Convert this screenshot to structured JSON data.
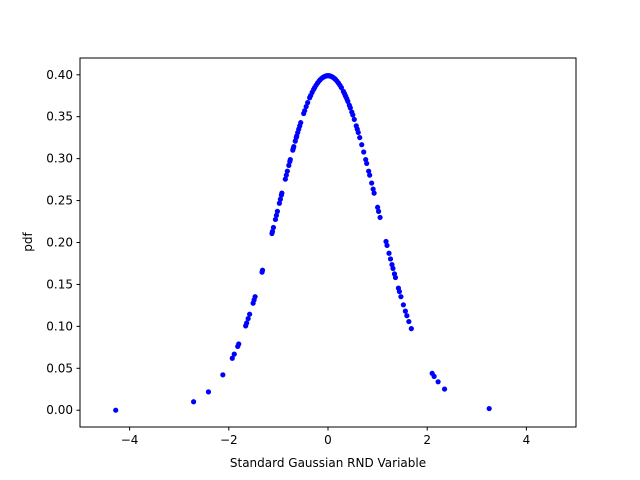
{
  "chart_data": {
    "type": "scatter",
    "title": "",
    "xlabel": "Standard Gaussian RND Variable",
    "ylabel": "pdf",
    "xlim": [
      -5,
      5
    ],
    "ylim": [
      -0.02,
      0.42
    ],
    "xticks": [
      -4,
      -2,
      0,
      2,
      4
    ],
    "xtick_labels": [
      "−4",
      "−2",
      "0",
      "2",
      "4"
    ],
    "yticks": [
      0.0,
      0.05,
      0.1,
      0.15,
      0.2,
      0.25,
      0.3,
      0.35,
      0.4
    ],
    "ytick_labels": [
      "0.00",
      "0.05",
      "0.10",
      "0.15",
      "0.20",
      "0.25",
      "0.30",
      "0.35",
      "0.40"
    ],
    "grid": false,
    "marker_color": "#0000ff",
    "x": [
      -4.28,
      -2.71,
      -2.41,
      -2.12,
      -1.93,
      -1.89,
      -1.82,
      -1.8,
      -1.66,
      -1.64,
      -1.61,
      -1.58,
      -1.51,
      -1.49,
      -1.47,
      -1.33,
      -1.32,
      -1.13,
      -1.12,
      -1.1,
      -1.06,
      -1.04,
      -1.02,
      -0.98,
      -0.96,
      -0.94,
      -0.93,
      -0.86,
      -0.84,
      -0.82,
      -0.79,
      -0.77,
      -0.76,
      -0.71,
      -0.7,
      -0.69,
      -0.66,
      -0.64,
      -0.63,
      -0.61,
      -0.59,
      -0.57,
      -0.55,
      -0.49,
      -0.47,
      -0.44,
      -0.41,
      -0.37,
      -0.35,
      -0.32,
      -0.29,
      -0.27,
      -0.24,
      -0.21,
      -0.18,
      -0.16,
      -0.13,
      -0.11,
      -0.09,
      -0.07,
      -0.05,
      -0.03,
      -0.01,
      0.01,
      0.03,
      0.05,
      0.07,
      0.09,
      0.11,
      0.13,
      0.15,
      0.18,
      0.21,
      0.24,
      0.27,
      0.31,
      0.33,
      0.35,
      0.36,
      0.38,
      0.4,
      0.43,
      0.45,
      0.48,
      0.5,
      0.53,
      0.57,
      0.59,
      0.61,
      0.64,
      0.68,
      0.72,
      0.76,
      0.78,
      0.82,
      0.84,
      0.88,
      0.91,
      0.93,
      1.0,
      1.02,
      1.05,
      1.17,
      1.19,
      1.23,
      1.26,
      1.29,
      1.31,
      1.34,
      1.36,
      1.42,
      1.44,
      1.47,
      1.52,
      1.56,
      1.59,
      1.63,
      1.68,
      2.1,
      2.14,
      2.22,
      2.35,
      3.25
    ],
    "y": [
      4e-05,
      0.0101,
      0.0219,
      0.0422,
      0.062,
      0.0669,
      0.0761,
      0.079,
      0.1006,
      0.104,
      0.1092,
      0.1145,
      0.1276,
      0.1315,
      0.1354,
      0.1647,
      0.1669,
      0.2107,
      0.2131,
      0.2179,
      0.2275,
      0.2323,
      0.2371,
      0.2468,
      0.2516,
      0.2565,
      0.2589,
      0.2756,
      0.2803,
      0.285,
      0.292,
      0.2966,
      0.2989,
      0.3101,
      0.3123,
      0.3144,
      0.3209,
      0.3251,
      0.3271,
      0.3312,
      0.3352,
      0.3391,
      0.3429,
      0.3538,
      0.3572,
      0.3621,
      0.3668,
      0.3726,
      0.3752,
      0.379,
      0.3825,
      0.3847,
      0.3876,
      0.3902,
      0.3925,
      0.3939,
      0.3956,
      0.3965,
      0.3973,
      0.398,
      0.3984,
      0.3988,
      0.3989,
      0.3989,
      0.3988,
      0.3984,
      0.398,
      0.3973,
      0.3965,
      0.3956,
      0.3945,
      0.3925,
      0.3902,
      0.3876,
      0.3847,
      0.3802,
      0.3778,
      0.3752,
      0.3739,
      0.3712,
      0.3683,
      0.3637,
      0.3605,
      0.3555,
      0.3521,
      0.3467,
      0.3391,
      0.3352,
      0.3312,
      0.3251,
      0.3166,
      0.3079,
      0.2989,
      0.2943,
      0.285,
      0.2803,
      0.2709,
      0.2637,
      0.2589,
      0.242,
      0.2371,
      0.2299,
      0.2012,
      0.1965,
      0.1872,
      0.1804,
      0.1736,
      0.1691,
      0.1626,
      0.1582,
      0.1456,
      0.1415,
      0.1354,
      0.1257,
      0.1182,
      0.1127,
      0.1057,
      0.0973,
      0.044,
      0.0404,
      0.0339,
      0.0252,
      0.002
    ]
  }
}
